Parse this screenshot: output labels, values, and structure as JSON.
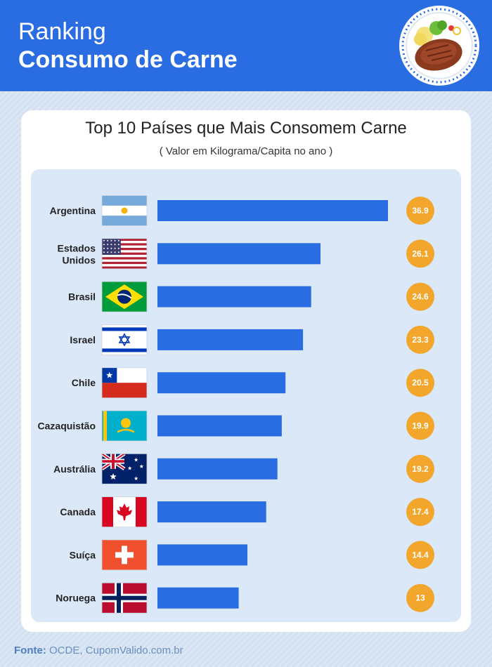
{
  "header": {
    "line1": "Ranking",
    "line2": "Consumo de Carne",
    "emblem_icon": "steak-plate-icon"
  },
  "card": {
    "title": "Top 10 Países que Mais Consomem Carne",
    "subtitle": "( Valor em Kilograma/Capita no ano )"
  },
  "source": {
    "label": "Fonte:",
    "text": "OCDE, CupomValido.com.br"
  },
  "colors": {
    "header_bg": "#2a6de2",
    "bar": "#2a6de2",
    "badge": "#f2a62b",
    "panel": "#dbe8f8"
  },
  "chart_data": {
    "type": "bar",
    "orientation": "horizontal",
    "title": "Top 10 Países que Mais Consomem Carne",
    "subtitle": "( Valor em Kilograma/Capita no ano )",
    "categories": [
      "Argentina",
      "Estados Unidos",
      "Brasil",
      "Israel",
      "Chile",
      "Cazaquistão",
      "Austrália",
      "Canada",
      "Suíça",
      "Noruega"
    ],
    "values": [
      36.9,
      26.1,
      24.6,
      23.3,
      20.5,
      19.9,
      19.2,
      17.4,
      14.4,
      13
    ],
    "value_labels": [
      "36.9",
      "26.1",
      "24.6",
      "23.3",
      "20.5",
      "19.9",
      "19.2",
      "17.4",
      "14.4",
      "13"
    ],
    "flags": [
      "argentina",
      "usa",
      "brazil",
      "israel",
      "chile",
      "kazakhstan",
      "australia",
      "canada",
      "switzerland",
      "norway"
    ],
    "xlim": [
      0,
      36.9
    ],
    "grid": false,
    "legend": "none"
  }
}
